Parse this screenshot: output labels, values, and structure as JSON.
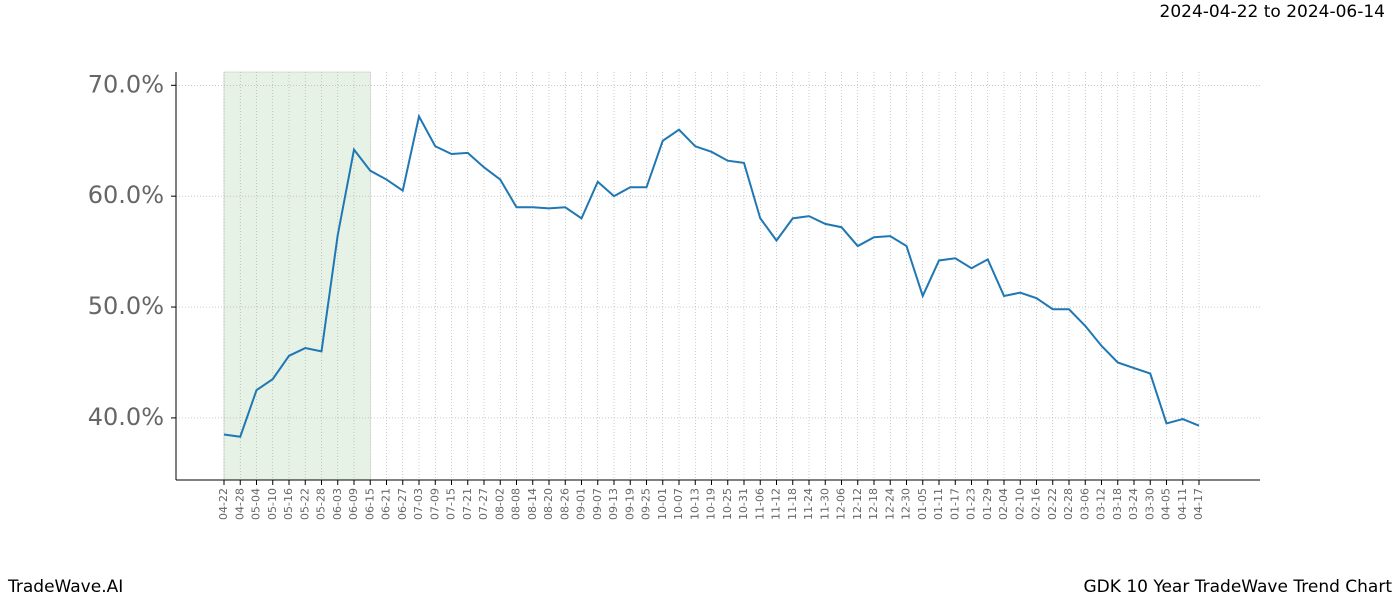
{
  "header": {
    "range": "2024-04-22 to 2024-06-14"
  },
  "footer": {
    "brand": "TradeWave.AI",
    "caption": "GDK 10 Year TradeWave Trend Chart"
  },
  "chart_data": {
    "type": "line",
    "categories": [
      "04-22",
      "04-28",
      "05-04",
      "05-10",
      "05-16",
      "05-22",
      "05-28",
      "06-03",
      "06-09",
      "06-15",
      "06-21",
      "06-27",
      "07-03",
      "07-09",
      "07-15",
      "07-21",
      "07-27",
      "08-02",
      "08-08",
      "08-14",
      "08-20",
      "08-26",
      "09-01",
      "09-07",
      "09-13",
      "09-19",
      "09-25",
      "10-01",
      "10-07",
      "10-13",
      "10-19",
      "10-25",
      "10-31",
      "11-06",
      "11-12",
      "11-18",
      "11-24",
      "11-30",
      "12-06",
      "12-12",
      "12-18",
      "12-24",
      "12-30",
      "01-05",
      "01-11",
      "01-17",
      "01-23",
      "01-29",
      "02-04",
      "02-10",
      "02-16",
      "02-22",
      "02-28",
      "03-06",
      "03-12",
      "03-18",
      "03-24",
      "03-30",
      "04-05",
      "04-11",
      "04-17"
    ],
    "series": [
      {
        "color": "#1f77b4",
        "values": [
          38.5,
          38.3,
          42.5,
          43.5,
          45.6,
          46.3,
          46.0,
          56.5,
          64.2,
          62.3,
          61.5,
          60.5,
          67.2,
          64.5,
          63.8,
          63.9,
          62.6,
          61.5,
          59.0,
          59.0,
          58.9,
          59.0,
          58.0,
          61.3,
          60.0,
          60.8,
          60.8,
          65.0,
          66.0,
          64.5,
          64.0,
          63.2,
          63.0,
          58.0,
          56.0,
          58.0,
          58.2,
          57.5,
          57.2,
          55.5,
          56.3,
          56.4,
          55.5,
          51.0,
          54.2,
          54.4,
          53.5,
          54.3,
          51.0,
          51.3,
          50.8,
          49.8,
          49.8,
          48.3,
          46.5,
          45.0,
          44.5,
          44.0,
          39.5,
          39.9,
          39.3
        ]
      }
    ],
    "ylim": [
      34.4,
      71.2
    ],
    "yticks": [
      {
        "value": 40,
        "label": "40.0%"
      },
      {
        "value": 50,
        "label": "50.0%"
      },
      {
        "value": 60,
        "label": "60.0%"
      },
      {
        "value": 70,
        "label": "70.0%"
      }
    ],
    "grid": true,
    "highlight_color": "#e6f2e6"
  }
}
